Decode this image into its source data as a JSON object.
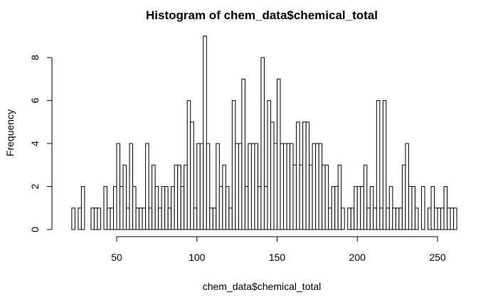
{
  "chart_data": {
    "type": "bar",
    "title": "Histogram of chem_data$chemical_total",
    "xlabel": "chem_data$chemical_total",
    "ylabel": "Frequency",
    "bin_width": 2,
    "x_start": 22,
    "xlim": [
      22,
      260
    ],
    "ylim": [
      0,
      9
    ],
    "x_ticks": [
      50,
      100,
      150,
      200,
      250
    ],
    "y_ticks": [
      0,
      2,
      4,
      6,
      8
    ],
    "values": [
      1,
      0,
      1,
      2,
      0,
      0,
      1,
      1,
      1,
      0,
      2,
      1,
      1,
      2,
      4,
      2,
      3,
      1,
      4,
      2,
      1,
      1,
      1,
      4,
      1,
      3,
      2,
      1,
      2,
      2,
      1,
      2,
      3,
      3,
      2,
      3,
      6,
      5,
      1,
      4,
      4,
      9,
      4,
      1,
      1,
      4,
      2,
      3,
      2,
      1,
      6,
      4,
      4,
      7,
      2,
      4,
      4,
      4,
      2,
      8,
      2,
      6,
      5,
      4,
      7,
      4,
      4,
      4,
      4,
      3,
      5,
      3,
      5,
      5,
      3,
      4,
      4,
      4,
      3,
      3,
      1,
      2,
      2,
      3,
      1,
      0,
      1,
      1,
      2,
      2,
      2,
      3,
      1,
      2,
      1,
      6,
      1,
      6,
      1,
      2,
      1,
      1,
      1,
      3,
      4,
      2,
      2,
      1,
      0,
      2,
      0,
      1,
      2,
      1,
      1,
      1,
      2,
      1,
      1,
      1
    ]
  }
}
